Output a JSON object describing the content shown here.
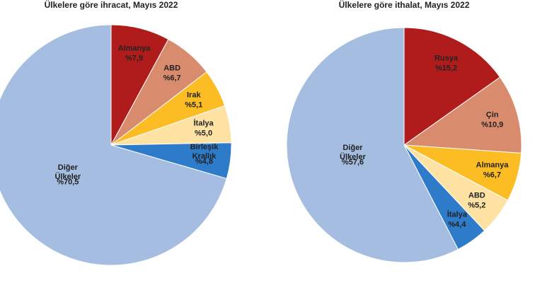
{
  "chart_data": [
    {
      "type": "pie",
      "title": "Ülkelere göre ihracat, Mayıs 2022",
      "categories": [
        "Almanya",
        "ABD",
        "Irak",
        "İtalya",
        "Birleşik Krallık",
        "Diğer Ülkeler"
      ],
      "values": [
        7.9,
        6.7,
        5.1,
        5.0,
        4.8,
        70.5
      ],
      "value_labels": [
        "%7,9",
        "%6,7",
        "%5,1",
        "%5,0",
        "%4,8",
        "%70,5"
      ],
      "colors": [
        "#b01c1c",
        "#d98b6e",
        "#fbbc24",
        "#fde2a4",
        "#2e7bc9",
        "#a5bde0"
      ]
    },
    {
      "type": "pie",
      "title": "Ülkelere göre ithalat, Mayıs 2022",
      "categories": [
        "Rusya",
        "Çin",
        "Almanya",
        "ABD",
        "İtalya",
        "Diğer Ülkeler"
      ],
      "values": [
        15.2,
        10.9,
        6.7,
        5.2,
        4.4,
        57.6
      ],
      "value_labels": [
        "%15,2",
        "%10,9",
        "%6,7",
        "%5,2",
        "%4,4",
        "%57,6"
      ],
      "colors": [
        "#b01c1c",
        "#d98b6e",
        "#fbbc24",
        "#fde2a4",
        "#2e7bc9",
        "#a5bde0"
      ]
    }
  ]
}
